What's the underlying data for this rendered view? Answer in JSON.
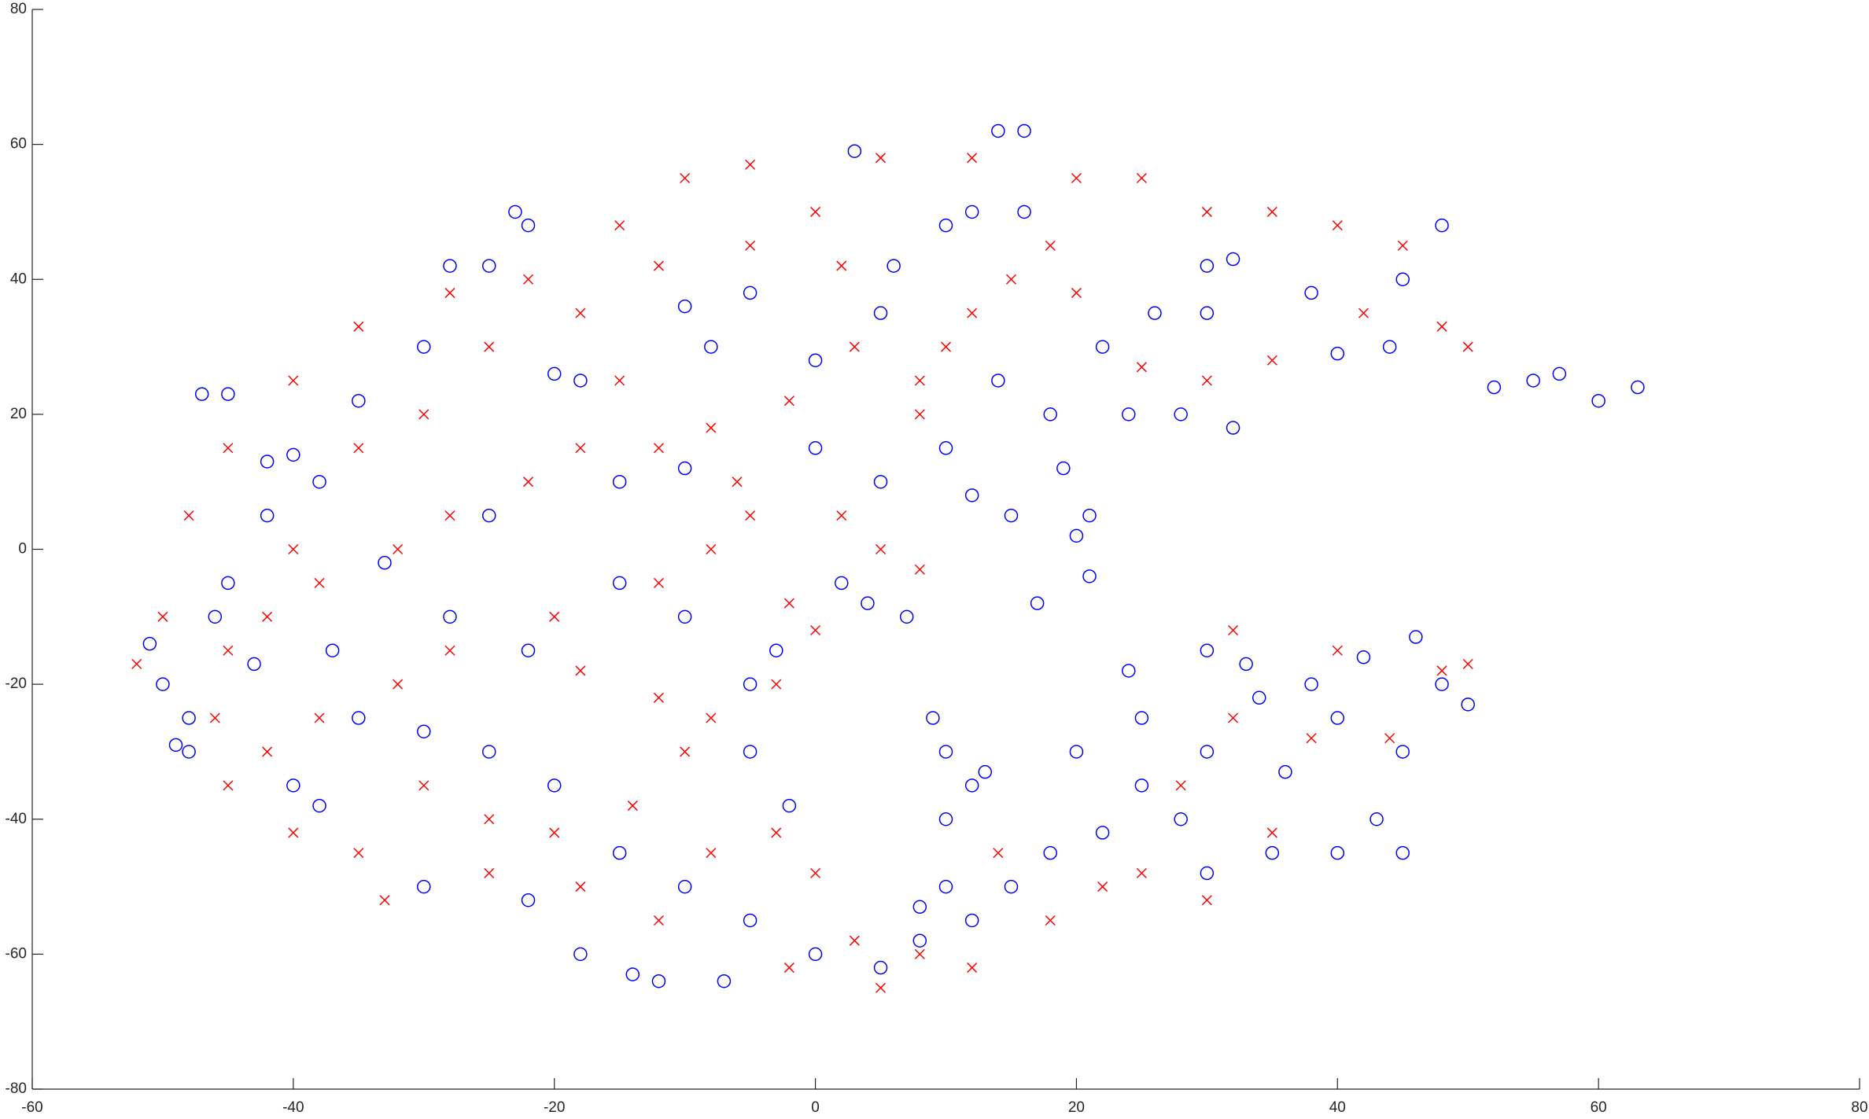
{
  "chart_data": {
    "type": "scatter",
    "xlim": [
      -60,
      80
    ],
    "ylim": [
      -80,
      80
    ],
    "xticks": [
      -60,
      -40,
      -20,
      0,
      20,
      40,
      60,
      80
    ],
    "yticks": [
      -80,
      -60,
      -40,
      -20,
      0,
      20,
      40,
      60,
      80
    ],
    "grid": false,
    "series": [
      {
        "color": "#0000ff",
        "marker": "o",
        "x": [
          -47,
          -45,
          -40,
          -42,
          -49,
          -48,
          -51,
          -38,
          -23,
          -22,
          -28,
          -25,
          14,
          16,
          3,
          -7,
          -12,
          -14,
          10,
          12,
          13,
          10,
          9,
          -5,
          -3,
          2,
          4,
          7,
          20,
          21,
          21,
          30,
          32,
          38,
          45,
          48,
          55,
          57,
          60,
          63,
          52,
          44,
          40,
          30,
          26,
          22,
          24,
          28,
          32,
          16,
          12,
          10,
          6,
          -5,
          -10,
          -18,
          -20,
          -30,
          -35,
          -38,
          -42,
          -45,
          -46,
          -35,
          -30,
          -25,
          -20,
          -15,
          -10,
          -5,
          0,
          5,
          8,
          -2,
          -5,
          -10,
          -15,
          -22,
          -28,
          -33,
          -25,
          -15,
          -10,
          0,
          5,
          10,
          12,
          15,
          14,
          18,
          19,
          -8,
          0,
          5,
          17,
          20,
          25,
          30,
          34,
          38,
          42,
          46,
          48,
          50,
          45,
          43,
          45,
          40,
          35,
          30,
          28,
          25,
          22,
          18,
          15,
          12,
          8,
          30,
          33,
          40,
          36,
          24,
          10,
          -18,
          -22,
          -30,
          -40,
          -48,
          -50,
          -43,
          -37
        ],
        "y": [
          23,
          23,
          14,
          13,
          -29,
          -25,
          -14,
          -38,
          50,
          48,
          42,
          42,
          62,
          62,
          59,
          -64,
          -64,
          -63,
          -50,
          -35,
          -33,
          -30,
          -25,
          -20,
          -15,
          -5,
          -8,
          -10,
          2,
          5,
          -4,
          42,
          43,
          38,
          40,
          48,
          25,
          26,
          22,
          24,
          24,
          30,
          29,
          35,
          35,
          30,
          20,
          20,
          18,
          50,
          50,
          48,
          42,
          38,
          36,
          25,
          26,
          30,
          22,
          10,
          5,
          -5,
          -10,
          -25,
          -27,
          -30,
          -35,
          -45,
          -50,
          -55,
          -60,
          -62,
          -53,
          -38,
          -30,
          -10,
          -5,
          -15,
          -10,
          -2,
          5,
          10,
          12,
          15,
          10,
          15,
          8,
          5,
          25,
          20,
          12,
          30,
          28,
          35,
          -8,
          -30,
          -25,
          -30,
          -22,
          -20,
          -16,
          -13,
          -20,
          -23,
          -30,
          -40,
          -45,
          -45,
          -45,
          -48,
          -40,
          -35,
          -42,
          -45,
          -50,
          -55,
          -58,
          -15,
          -17,
          -25,
          -33,
          -18,
          -40,
          -60,
          -52,
          -50,
          -35,
          -30,
          -20,
          -17,
          -15
        ]
      },
      {
        "color": "#ff0000",
        "marker": "x",
        "x": [
          -52,
          -50,
          -48,
          -45,
          -40,
          -35,
          -28,
          -22,
          -15,
          -10,
          -5,
          5,
          12,
          20,
          25,
          30,
          35,
          40,
          45,
          42,
          48,
          50,
          35,
          30,
          25,
          20,
          15,
          10,
          8,
          -2,
          -8,
          -12,
          -18,
          -22,
          -28,
          -32,
          -38,
          -42,
          -46,
          -42,
          -38,
          -32,
          -28,
          -20,
          -18,
          -12,
          -8,
          -3,
          -10,
          -14,
          -20,
          -25,
          -30,
          -35,
          -40,
          -33,
          -25,
          -18,
          -12,
          -8,
          -3,
          0,
          3,
          5,
          8,
          12,
          -2,
          2,
          5,
          8,
          -5,
          -8,
          -12,
          -2,
          0,
          8,
          12,
          2,
          -5,
          -12,
          -18,
          -25,
          -30,
          -35,
          -40,
          -45,
          22,
          25,
          30,
          35,
          28,
          32,
          38,
          44,
          48,
          50,
          40,
          32,
          18,
          14,
          -15,
          -6,
          3,
          0,
          18,
          -45
        ],
        "y": [
          -17,
          -10,
          5,
          15,
          25,
          33,
          38,
          40,
          48,
          55,
          57,
          58,
          58,
          55,
          55,
          50,
          50,
          48,
          45,
          35,
          33,
          30,
          28,
          25,
          27,
          38,
          40,
          30,
          25,
          22,
          18,
          15,
          15,
          10,
          5,
          0,
          -5,
          -10,
          -25,
          -30,
          -25,
          -20,
          -15,
          -10,
          -18,
          -22,
          -25,
          -20,
          -30,
          -38,
          -42,
          -40,
          -35,
          -45,
          -42,
          -52,
          -48,
          -50,
          -55,
          -45,
          -42,
          -48,
          -58,
          -65,
          -60,
          -62,
          -62,
          5,
          0,
          -3,
          5,
          0,
          -5,
          -8,
          -12,
          20,
          35,
          42,
          45,
          42,
          35,
          30,
          20,
          15,
          0,
          -15,
          -50,
          -48,
          -52,
          -42,
          -35,
          -25,
          -28,
          -28,
          -18,
          -17,
          -15,
          -12,
          -55,
          -45,
          25,
          10,
          30,
          50,
          45,
          -35
        ]
      }
    ]
  }
}
